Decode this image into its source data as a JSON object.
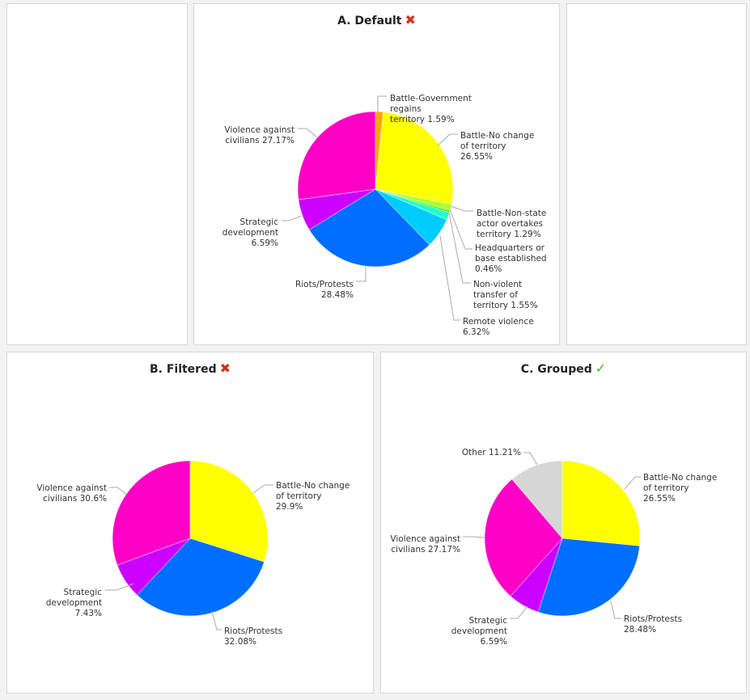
{
  "colors": {
    "Battle-Government regains territory": "#ffa500",
    "Battle-No change of territory": "#ffff00",
    "Battle-Non-state actor overtakes territory": "#adff2f",
    "Headquarters or base established": "#55ee00",
    "Non-violent transfer of territory": "#22ffcc",
    "Remote violence": "#00ccff",
    "Riots/Protests": "#006eff",
    "Strategic development": "#cc00ff",
    "Violence against civilians": "#ff00c6",
    "Other": "#d6d6d6"
  },
  "chart_data": [
    {
      "type": "pie",
      "title": "A. Default",
      "status_icon": "cross-icon",
      "status_glyph": "✖",
      "slices": [
        {
          "label": "Battle-Government regains territory",
          "value": 1.59,
          "text": [
            "Battle-Government",
            "regains",
            "territory 1.59%"
          ]
        },
        {
          "label": "Battle-No change of territory",
          "value": 26.55,
          "text": [
            "Battle-No change",
            "of territory",
            "26.55%"
          ]
        },
        {
          "label": "Battle-Non-state actor overtakes territory",
          "value": 1.29,
          "text": [
            "Battle-Non-state",
            "actor overtakes",
            "territory 1.29%"
          ]
        },
        {
          "label": "Headquarters or base established",
          "value": 0.46,
          "text": [
            "Headquarters or",
            "base established",
            "0.46%"
          ]
        },
        {
          "label": "Non-violent transfer of territory",
          "value": 1.55,
          "text": [
            "Non-violent",
            "transfer of",
            "territory 1.55%"
          ]
        },
        {
          "label": "Remote violence",
          "value": 6.32,
          "text": [
            "Remote violence",
            "6.32%"
          ]
        },
        {
          "label": "Riots/Protests",
          "value": 28.48,
          "text": [
            "Riots/Protests",
            "28.48%"
          ]
        },
        {
          "label": "Strategic development",
          "value": 6.59,
          "text": [
            "Strategic",
            "development",
            "6.59%"
          ]
        },
        {
          "label": "Violence against civilians",
          "value": 27.17,
          "text": [
            "Violence against",
            "civilians 27.17%"
          ]
        }
      ]
    },
    {
      "type": "pie",
      "title": "B. Filtered",
      "status_icon": "cross-icon",
      "status_glyph": "✖",
      "slices": [
        {
          "label": "Battle-No change of territory",
          "value": 29.9,
          "text": [
            "Battle-No change",
            "of territory",
            "29.9%"
          ]
        },
        {
          "label": "Riots/Protests",
          "value": 32.08,
          "text": [
            "Riots/Protests",
            "32.08%"
          ]
        },
        {
          "label": "Strategic development",
          "value": 7.43,
          "text": [
            "Strategic",
            "development",
            "7.43%"
          ]
        },
        {
          "label": "Violence against civilians",
          "value": 30.6,
          "text": [
            "Violence against",
            "civilians 30.6%"
          ]
        }
      ]
    },
    {
      "type": "pie",
      "title": "C. Grouped",
      "status_icon": "check-icon",
      "status_glyph": "✓",
      "slices": [
        {
          "label": "Battle-No change of territory",
          "value": 26.55,
          "text": [
            "Battle-No change",
            "of territory",
            "26.55%"
          ]
        },
        {
          "label": "Riots/Protests",
          "value": 28.48,
          "text": [
            "Riots/Protests",
            "28.48%"
          ]
        },
        {
          "label": "Strategic development",
          "value": 6.59,
          "text": [
            "Strategic",
            "development",
            "6.59%"
          ]
        },
        {
          "label": "Violence against civilians",
          "value": 27.17,
          "text": [
            "Violence against",
            "civilians 27.17%"
          ]
        },
        {
          "label": "Other",
          "value": 11.21,
          "text": [
            "Other 11.21%"
          ]
        }
      ]
    }
  ]
}
